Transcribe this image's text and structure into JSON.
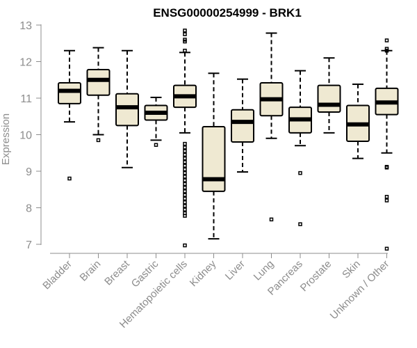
{
  "chart_data": {
    "type": "box",
    "title": "ENSG00000254999 - BRK1",
    "ylabel": "Expression",
    "xlabel": "",
    "ylim": [
      6.75,
      13.0
    ],
    "yticks": [
      7,
      8,
      9,
      10,
      11,
      12,
      13
    ],
    "box_fill": "#efe9d2",
    "categories": [
      "Bladder",
      "Brain",
      "Breast",
      "Gastric",
      "Hematopoietic cells",
      "Kidney",
      "Liver",
      "Lung",
      "Pancreas",
      "Prostate",
      "Skin",
      "Unknown / Other"
    ],
    "boxes": [
      {
        "min": 10.35,
        "q1": 10.85,
        "median": 11.2,
        "q3": 11.42,
        "max": 12.3,
        "outliers": [
          8.8
        ]
      },
      {
        "min": 10.0,
        "q1": 11.08,
        "median": 11.5,
        "q3": 11.78,
        "max": 12.38,
        "outliers": [
          9.85
        ]
      },
      {
        "min": 9.1,
        "q1": 10.25,
        "median": 10.75,
        "q3": 11.12,
        "max": 12.3,
        "outliers": []
      },
      {
        "min": 9.85,
        "q1": 10.4,
        "median": 10.6,
        "q3": 10.8,
        "max": 11.02,
        "outliers": [
          9.72
        ]
      },
      {
        "min": 10.05,
        "q1": 10.75,
        "median": 11.05,
        "q3": 11.35,
        "max": 12.25,
        "outliers": [
          12.85,
          12.75,
          12.6,
          12.55,
          12.3,
          9.75,
          9.65,
          9.55,
          9.45,
          9.35,
          9.25,
          9.15,
          9.05,
          8.95,
          8.85,
          8.75,
          8.65,
          8.55,
          8.45,
          8.35,
          8.25,
          8.15,
          8.05,
          7.95,
          7.85,
          7.78,
          6.97
        ]
      },
      {
        "min": 7.15,
        "q1": 8.45,
        "median": 8.78,
        "q3": 10.22,
        "max": 11.68,
        "outliers": []
      },
      {
        "min": 8.98,
        "q1": 9.8,
        "median": 10.35,
        "q3": 10.68,
        "max": 11.52,
        "outliers": []
      },
      {
        "min": 9.9,
        "q1": 10.52,
        "median": 10.97,
        "q3": 11.42,
        "max": 12.78,
        "outliers": [
          7.68
        ]
      },
      {
        "min": 9.7,
        "q1": 10.05,
        "median": 10.42,
        "q3": 10.75,
        "max": 11.75,
        "outliers": [
          8.95,
          7.55
        ]
      },
      {
        "min": 10.05,
        "q1": 10.62,
        "median": 10.82,
        "q3": 11.35,
        "max": 12.1,
        "outliers": []
      },
      {
        "min": 9.35,
        "q1": 9.82,
        "median": 10.28,
        "q3": 10.8,
        "max": 11.38,
        "outliers": []
      },
      {
        "min": 9.5,
        "q1": 10.55,
        "median": 10.88,
        "q3": 11.27,
        "max": 12.3,
        "outliers": [
          12.58,
          12.35,
          12.3,
          9.1,
          9.12,
          8.3,
          8.2,
          6.88
        ]
      }
    ]
  }
}
